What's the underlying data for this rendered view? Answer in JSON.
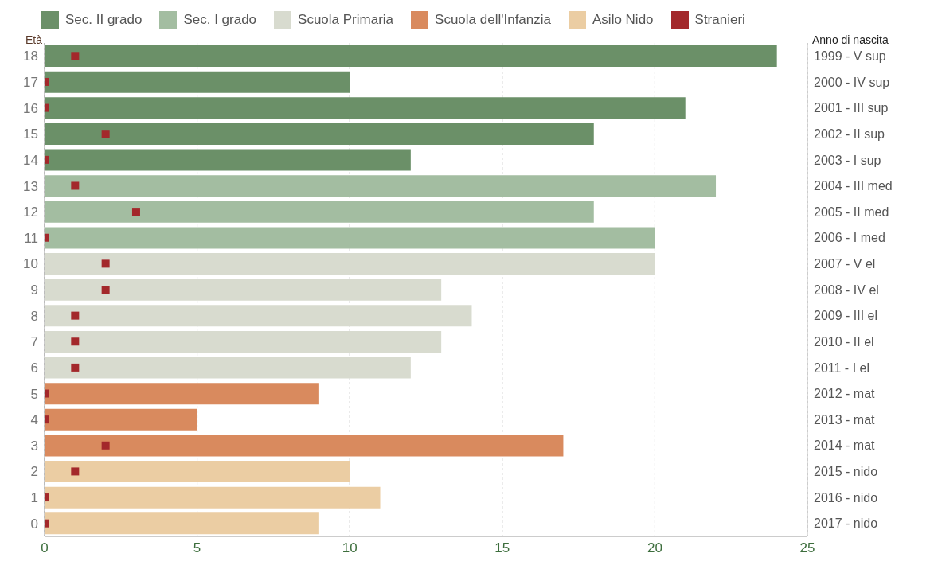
{
  "chart_data": {
    "type": "bar",
    "orientation": "horizontal",
    "stacked": true,
    "ylabel": "Età",
    "y2label": "Anno di nascita",
    "categories": [
      "18",
      "17",
      "16",
      "15",
      "14",
      "13",
      "12",
      "11",
      "10",
      "9",
      "8",
      "7",
      "6",
      "5",
      "4",
      "3",
      "2",
      "1",
      "0"
    ],
    "y2_categories": [
      "1999 - V sup",
      "2000 - IV sup",
      "2001 - III sup",
      "2002 - II sup",
      "2003 - I sup",
      "2004 - III med",
      "2005 - II med",
      "2006 - I med",
      "2007 - V el",
      "2008 - IV el",
      "2009 - III el",
      "2010 - II el",
      "2011 - I el",
      "2012 - mat",
      "2013 - mat",
      "2014 - mat",
      "2015 - nido",
      "2016 - nido",
      "2017 - nido"
    ],
    "series": [
      {
        "name": "Sec. II grado",
        "color": "#6b9068",
        "values": [
          24,
          10,
          21,
          18,
          12,
          null,
          null,
          null,
          null,
          null,
          null,
          null,
          null,
          null,
          null,
          null,
          null,
          null,
          null
        ]
      },
      {
        "name": "Sec. I grado",
        "color": "#a3bda1",
        "values": [
          null,
          null,
          null,
          null,
          null,
          22,
          18,
          20,
          null,
          null,
          null,
          null,
          null,
          null,
          null,
          null,
          null,
          null,
          null
        ]
      },
      {
        "name": "Scuola Primaria",
        "color": "#d8dbcf",
        "values": [
          null,
          null,
          null,
          null,
          null,
          null,
          null,
          null,
          20,
          13,
          14,
          13,
          12,
          null,
          null,
          null,
          null,
          null,
          null
        ]
      },
      {
        "name": "Scuola dell'Infanzia",
        "color": "#d98a5e",
        "values": [
          null,
          null,
          null,
          null,
          null,
          null,
          null,
          null,
          null,
          null,
          null,
          null,
          null,
          9,
          5,
          17,
          null,
          null,
          null
        ]
      },
      {
        "name": "Asilo Nido",
        "color": "#ebcda3",
        "values": [
          null,
          null,
          null,
          null,
          null,
          null,
          null,
          null,
          null,
          null,
          null,
          null,
          null,
          null,
          null,
          null,
          10,
          11,
          9
        ]
      },
      {
        "name": "Stranieri",
        "type": "scatter",
        "color": "#a3282b",
        "values": [
          1,
          0,
          0,
          2,
          0,
          1,
          3,
          0,
          2,
          2,
          1,
          1,
          1,
          0,
          0,
          2,
          1,
          0,
          0
        ]
      }
    ],
    "xlim": [
      0,
      25
    ],
    "xticks": [
      0,
      5,
      10,
      15,
      20,
      25
    ],
    "grid": "x",
    "legend": "top",
    "marker": "square"
  }
}
